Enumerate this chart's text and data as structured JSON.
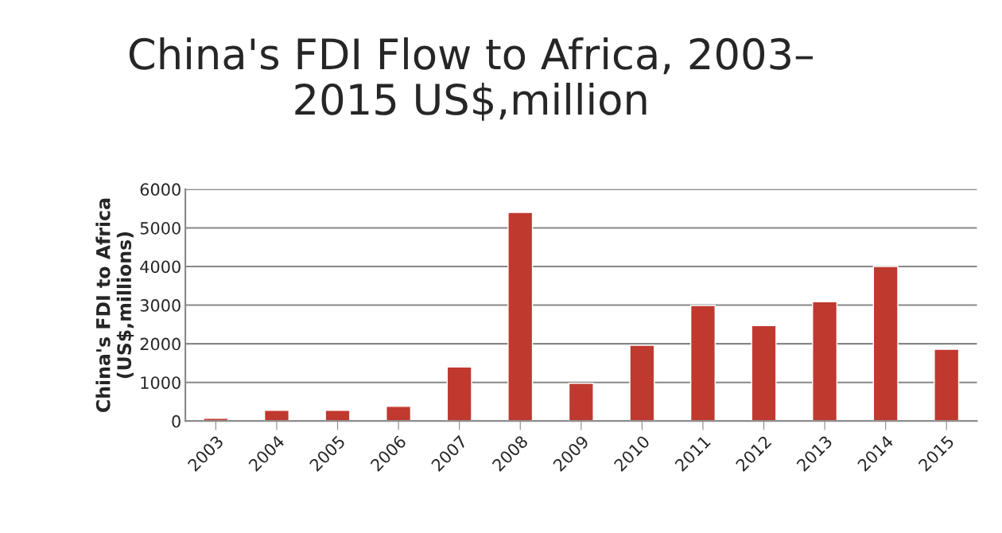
{
  "chart_data": {
    "type": "bar",
    "title": "China's FDI Flow to Africa, 2003–\n2015 US$,million",
    "ylabel": "China's FDI to Africa\n(US$,millions)",
    "categories": [
      "2003",
      "2004",
      "2005",
      "2006",
      "2007",
      "2008",
      "2009",
      "2010",
      "2011",
      "2012",
      "2013",
      "2014",
      "2015"
    ],
    "values": [
      70,
      280,
      280,
      380,
      1400,
      5400,
      980,
      1960,
      2990,
      2470,
      3090,
      4000,
      1860
    ],
    "color": "#c0392f",
    "ylim": [
      0,
      6000
    ],
    "yticks": [
      0,
      1000,
      2000,
      3000,
      4000,
      5000,
      6000
    ],
    "grid": "y"
  }
}
